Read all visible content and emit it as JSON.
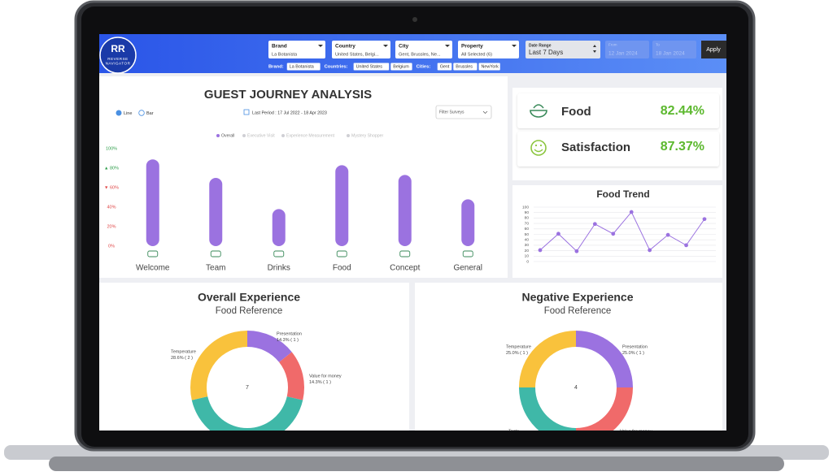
{
  "header": {
    "logo": "RR",
    "logo_lines": [
      "REVERSE",
      "NAVIGATOR"
    ],
    "filters": [
      {
        "label": "Brand",
        "value": "La Botanista"
      },
      {
        "label": "Country",
        "value": "United States, Belgi..."
      },
      {
        "label": "City",
        "value": "Gent, Brussles, Ne..."
      },
      {
        "label": "Property",
        "value": "All Selected (6)"
      },
      {
        "label": "Date Range",
        "value": "Last 7 Days"
      }
    ],
    "from_label": "From",
    "from": "12 Jan 2024",
    "to_label": "To",
    "to": "18 Jan 2024",
    "apply": "Apply",
    "chips": [
      {
        "label": "Brand:",
        "items": [
          "La Botanista"
        ]
      },
      {
        "label": "Countries:",
        "items": [
          "United States",
          "Belgium"
        ]
      },
      {
        "label": "Cities:",
        "items": [
          "Gent",
          "Brussles",
          "NewYork"
        ]
      }
    ]
  },
  "journey": {
    "title": "GUEST JOURNEY ANALYSIS",
    "modes": [
      "Line",
      "Bar"
    ],
    "period": "Last Period : 17 Jul 2022 - 18 Apr 2023",
    "filter": "Filter Surveys",
    "chart": {
      "type": "bar",
      "legend": [
        {
          "name": "Overall",
          "color": "#9b72e0"
        },
        {
          "name": "Executive Visit",
          "color": "#cfcfd4"
        },
        {
          "name": "Experience Measurement",
          "color": "#cfcfd4"
        },
        {
          "name": "Mystery Shopper",
          "color": "#cfcfd4"
        }
      ],
      "categories": [
        "Welcome",
        "Team",
        "Drinks",
        "Food",
        "Concept",
        "General"
      ],
      "values": [
        89,
        70,
        38,
        83,
        73,
        48
      ],
      "ylim": [
        0,
        100
      ],
      "yticks": [
        {
          "value": 0,
          "label": "0%"
        },
        {
          "value": 20,
          "label": "20%"
        },
        {
          "value": 40,
          "label": "40%"
        },
        {
          "value": 60,
          "label": "▼ 60%"
        },
        {
          "value": 80,
          "label": "▲ 80%"
        },
        {
          "value": 100,
          "label": "100%"
        }
      ]
    }
  },
  "kpis": [
    {
      "name": "Food",
      "value": "82.44%"
    },
    {
      "name": "Satisfaction",
      "value": "87.37%"
    }
  ],
  "trend": {
    "type": "line",
    "title": "Food Trend",
    "color": "#9b72e0",
    "grid": true,
    "values": [
      21,
      51,
      19,
      69,
      51,
      91,
      21,
      49,
      30,
      78
    ],
    "ylim": [
      0,
      100
    ],
    "yticks": [
      0,
      10,
      20,
      30,
      40,
      50,
      60,
      70,
      80,
      90,
      100
    ]
  },
  "overall": {
    "type": "pie",
    "title": "Overall Experience",
    "subtitle": "Food Reference",
    "total": "7",
    "categories": [
      "Presentation",
      "Value for money",
      null,
      "Temperature"
    ],
    "values": [
      1,
      1,
      3,
      2
    ],
    "value_labels": [
      "14.3% ( 1 )",
      "14.3% ( 1 )",
      null,
      "28.6% ( 2 )"
    ],
    "colors": [
      "#9b72e0",
      "#f06a6a",
      "#3fb8a8",
      "#f9c23c"
    ]
  },
  "negative": {
    "type": "pie",
    "title": "Negative Experience",
    "subtitle": "Food Reference",
    "total": "4",
    "categories": [
      "Presentation",
      "Value for money",
      "Taste",
      "Temperature"
    ],
    "values": [
      1,
      1,
      1,
      1
    ],
    "value_labels": [
      "25.0% ( 1 )",
      null,
      null,
      "25.0% ( 1 )"
    ],
    "colors": [
      "#9b72e0",
      "#f06a6a",
      "#3fb8a8",
      "#f9c23c"
    ]
  }
}
